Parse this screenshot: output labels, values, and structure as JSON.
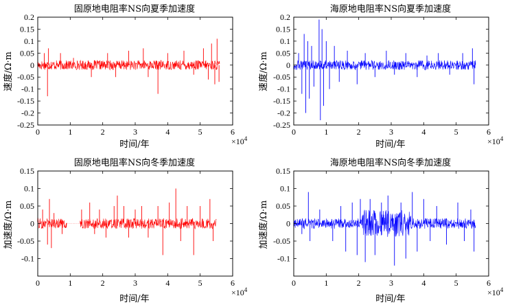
{
  "chart_data": [
    {
      "type": "line",
      "title": "固原地电阻率NS向夏季加速度",
      "xlabel": "时间/年",
      "ylabel": "速度/Ω·m",
      "xlim": [
        0,
        60000
      ],
      "ylim": [
        -0.25,
        0.2
      ],
      "x_ticks": [
        0,
        1,
        2,
        3,
        4,
        5,
        6
      ],
      "y_ticks": [
        -0.25,
        -0.2,
        -0.15,
        -0.1,
        -0.05,
        0,
        0.05,
        0.1,
        0.15,
        0.2
      ],
      "x_multiplier": "×10",
      "x_multiplier_exp": "4",
      "color": "#ff0000",
      "series": [
        {
          "x_range": [
            0,
            56000
          ],
          "base_amplitude": 0.02,
          "spikes": [
            {
              "x": 2000,
              "y": 0.05
            },
            {
              "x": 3000,
              "y": -0.13
            },
            {
              "x": 3300,
              "y": 0.07
            },
            {
              "x": 7000,
              "y": 0.05
            },
            {
              "x": 11000,
              "y": 0.03
            },
            {
              "x": 16500,
              "y": -0.05
            },
            {
              "x": 21500,
              "y": 0.05
            },
            {
              "x": 24000,
              "y": -0.05
            },
            {
              "x": 28000,
              "y": 0.06
            },
            {
              "x": 32500,
              "y": 0.07
            },
            {
              "x": 34000,
              "y": -0.05
            },
            {
              "x": 37000,
              "y": -0.12
            },
            {
              "x": 40000,
              "y": 0.05
            },
            {
              "x": 45000,
              "y": 0.06
            },
            {
              "x": 48000,
              "y": -0.04
            },
            {
              "x": 51000,
              "y": 0.07
            },
            {
              "x": 52500,
              "y": -0.06
            },
            {
              "x": 53500,
              "y": 0.09
            },
            {
              "x": 54500,
              "y": -0.08
            },
            {
              "x": 55200,
              "y": 0.11
            },
            {
              "x": 55800,
              "y": -0.07
            }
          ]
        }
      ]
    },
    {
      "type": "line",
      "title": "海原地电阻率NS向夏季加速度",
      "xlabel": "时间/年",
      "ylabel": "速度/Ω·m",
      "xlim": [
        0,
        60000
      ],
      "ylim": [
        -0.25,
        0.2
      ],
      "x_ticks": [
        0,
        1,
        2,
        3,
        4,
        5,
        6
      ],
      "y_ticks": [
        -0.25,
        -0.2,
        -0.15,
        -0.1,
        -0.05,
        0,
        0.05,
        0.1,
        0.15,
        0.2
      ],
      "x_multiplier": "×10",
      "x_multiplier_exp": "4",
      "color": "#0000ff",
      "series": [
        {
          "x_range": [
            0,
            56000
          ],
          "base_amplitude": 0.02,
          "spikes": [
            {
              "x": 1500,
              "y": 0.05
            },
            {
              "x": 2500,
              "y": -0.12
            },
            {
              "x": 3200,
              "y": 0.13
            },
            {
              "x": 3700,
              "y": -0.2
            },
            {
              "x": 4300,
              "y": 0.1
            },
            {
              "x": 4800,
              "y": -0.14
            },
            {
              "x": 5500,
              "y": 0.08
            },
            {
              "x": 6200,
              "y": -0.09
            },
            {
              "x": 7800,
              "y": 0.19
            },
            {
              "x": 8200,
              "y": -0.23
            },
            {
              "x": 8700,
              "y": 0.15
            },
            {
              "x": 9200,
              "y": -0.17
            },
            {
              "x": 10000,
              "y": 0.1
            },
            {
              "x": 11000,
              "y": -0.1
            },
            {
              "x": 12500,
              "y": 0.08
            },
            {
              "x": 14000,
              "y": -0.07
            },
            {
              "x": 16500,
              "y": 0.06
            },
            {
              "x": 19500,
              "y": -0.08
            },
            {
              "x": 22000,
              "y": 0.05
            },
            {
              "x": 25000,
              "y": -0.05
            },
            {
              "x": 28500,
              "y": 0.06
            },
            {
              "x": 31000,
              "y": -0.04
            },
            {
              "x": 34500,
              "y": 0.05
            },
            {
              "x": 38000,
              "y": -0.05
            },
            {
              "x": 41000,
              "y": 0.04
            },
            {
              "x": 44500,
              "y": 0.05
            },
            {
              "x": 48000,
              "y": -0.04
            },
            {
              "x": 52000,
              "y": 0.05
            },
            {
              "x": 55000,
              "y": 0.07
            },
            {
              "x": 55500,
              "y": -0.08
            }
          ]
        }
      ]
    },
    {
      "type": "line",
      "title": "固原地电阻率NS向冬季加速度",
      "xlabel": "时间/年",
      "ylabel": "加速度/Ω·m",
      "xlim": [
        0,
        60000
      ],
      "ylim": [
        -0.15,
        0.15
      ],
      "x_ticks": [
        0,
        1,
        2,
        3,
        4,
        5,
        6
      ],
      "y_ticks": [
        -0.1,
        -0.05,
        0,
        0.05,
        0.1,
        0.15
      ],
      "x_multiplier": "×10",
      "x_multiplier_exp": "4",
      "color": "#ff0000",
      "series": [
        {
          "x_range": [
            0,
            55000
          ],
          "gap": [
            9000,
            13000
          ],
          "base_amplitude": 0.015,
          "spikes": [
            {
              "x": 1500,
              "y": 0.04
            },
            {
              "x": 3000,
              "y": -0.06
            },
            {
              "x": 3600,
              "y": 0.07
            },
            {
              "x": 4200,
              "y": -0.07
            },
            {
              "x": 5000,
              "y": 0.03
            },
            {
              "x": 7500,
              "y": -0.03
            },
            {
              "x": 13500,
              "y": 0.04
            },
            {
              "x": 16000,
              "y": 0.06
            },
            {
              "x": 17500,
              "y": -0.03
            },
            {
              "x": 19000,
              "y": 0.04
            },
            {
              "x": 21000,
              "y": -0.04
            },
            {
              "x": 23500,
              "y": 0.05
            },
            {
              "x": 24500,
              "y": 0.08
            },
            {
              "x": 26500,
              "y": 0.05
            },
            {
              "x": 28000,
              "y": -0.04
            },
            {
              "x": 30000,
              "y": 0.04
            },
            {
              "x": 32000,
              "y": 0.05
            },
            {
              "x": 34000,
              "y": -0.04
            },
            {
              "x": 37000,
              "y": 0.05
            },
            {
              "x": 38500,
              "y": -0.09
            },
            {
              "x": 40500,
              "y": 0.06
            },
            {
              "x": 42500,
              "y": 0.1
            },
            {
              "x": 44000,
              "y": -0.05
            },
            {
              "x": 46000,
              "y": 0.05
            },
            {
              "x": 48000,
              "y": -0.09
            },
            {
              "x": 50000,
              "y": 0.05
            },
            {
              "x": 53000,
              "y": 0.07
            },
            {
              "x": 54000,
              "y": -0.05
            }
          ]
        }
      ]
    },
    {
      "type": "line",
      "title": "海原地电阻率NS向冬季加速度",
      "xlabel": "时间/年",
      "ylabel": "加速度/Ω·m",
      "xlim": [
        0,
        60000
      ],
      "ylim": [
        -0.15,
        0.15
      ],
      "x_ticks": [
        0,
        1,
        2,
        3,
        4,
        5,
        6
      ],
      "y_ticks": [
        -0.1,
        -0.05,
        0,
        0.05,
        0.1,
        0.15
      ],
      "x_multiplier": "×10",
      "x_multiplier_exp": "4",
      "color": "#0000ff",
      "series": [
        {
          "x_range": [
            0,
            56000
          ],
          "base_amplitude": 0.015,
          "dense_band": [
            21000,
            36000
          ],
          "dense_amplitude": 0.04,
          "spikes": [
            {
              "x": 2500,
              "y": -0.03
            },
            {
              "x": 4500,
              "y": 0.09
            },
            {
              "x": 5000,
              "y": -0.05
            },
            {
              "x": 8000,
              "y": 0.04
            },
            {
              "x": 12000,
              "y": -0.05
            },
            {
              "x": 14500,
              "y": 0.05
            },
            {
              "x": 16000,
              "y": -0.08
            },
            {
              "x": 18000,
              "y": 0.06
            },
            {
              "x": 19500,
              "y": -0.09
            },
            {
              "x": 20500,
              "y": 0.07
            },
            {
              "x": 22000,
              "y": -0.11
            },
            {
              "x": 23500,
              "y": 0.07
            },
            {
              "x": 25000,
              "y": -0.09
            },
            {
              "x": 27000,
              "y": 0.06
            },
            {
              "x": 29000,
              "y": 0.08
            },
            {
              "x": 31000,
              "y": -0.12
            },
            {
              "x": 33000,
              "y": 0.06
            },
            {
              "x": 34500,
              "y": -0.1
            },
            {
              "x": 36500,
              "y": 0.09
            },
            {
              "x": 38000,
              "y": -0.08
            },
            {
              "x": 40000,
              "y": 0.07
            },
            {
              "x": 42000,
              "y": -0.05
            },
            {
              "x": 44000,
              "y": 0.05
            },
            {
              "x": 47000,
              "y": -0.06
            },
            {
              "x": 50500,
              "y": 0.06
            },
            {
              "x": 52500,
              "y": -0.05
            },
            {
              "x": 54500,
              "y": 0.04
            },
            {
              "x": 55500,
              "y": -0.08
            }
          ]
        }
      ]
    }
  ]
}
